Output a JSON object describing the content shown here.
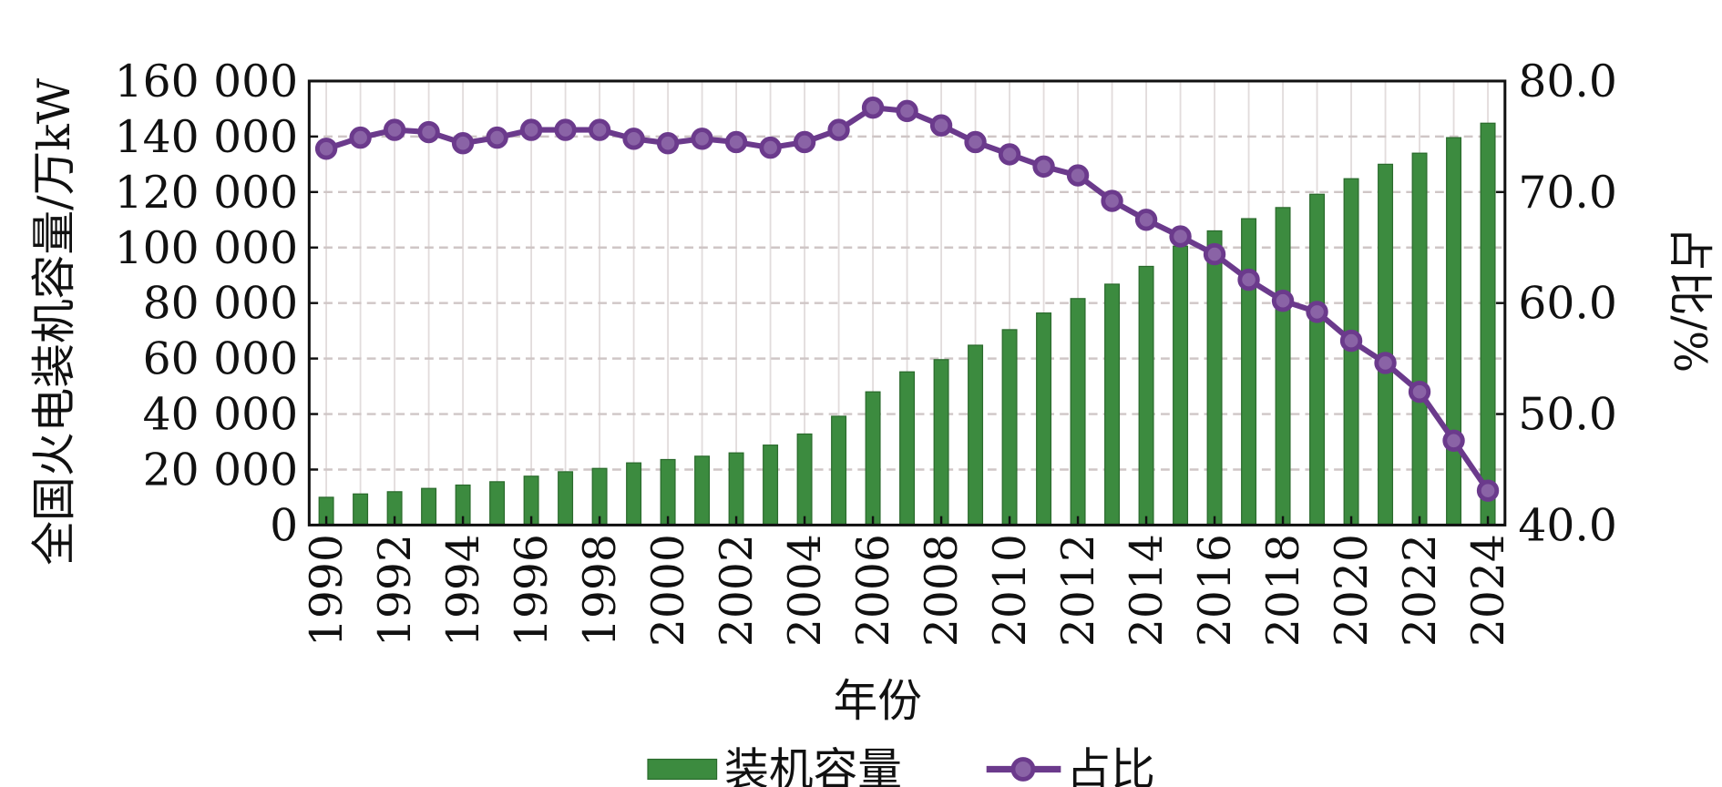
{
  "chart_data": {
    "type": "bar+line",
    "xlabel": "年份",
    "ylabel": "全国火电装机容量/万kW",
    "y2label": "占比/%",
    "ylim": [
      0,
      160000
    ],
    "y2lim": [
      40.0,
      80.0
    ],
    "yticks": [
      "0",
      "20 000",
      "40 000",
      "60 000",
      "80 000",
      "100 000",
      "120 000",
      "140 000",
      "160 000"
    ],
    "y2ticks": [
      "40.0",
      "50.0",
      "60.0",
      "70.0",
      "80.0"
    ],
    "xticks": [
      "1990",
      "1992",
      "1994",
      "1996",
      "1998",
      "2000",
      "2002",
      "2004",
      "2006",
      "2008",
      "2010",
      "2012",
      "2014",
      "2016",
      "2018",
      "2020",
      "2022",
      "2024"
    ],
    "grid": true,
    "legend_position": "bottom-center",
    "categories": [
      1990,
      1991,
      1992,
      1993,
      1994,
      1995,
      1996,
      1997,
      1998,
      1999,
      2000,
      2001,
      2002,
      2003,
      2004,
      2005,
      2006,
      2007,
      2008,
      2009,
      2010,
      2011,
      2012,
      2013,
      2014,
      2015,
      2016,
      2017,
      2018,
      2019,
      2020,
      2021,
      2022,
      2023,
      2024
    ],
    "series": [
      {
        "name": "装机容量",
        "type": "bar",
        "axis": "left",
        "color": "#3c8b3f",
        "values": [
          10000,
          11200,
          12000,
          13200,
          14400,
          15600,
          17600,
          19200,
          20400,
          22400,
          23600,
          24800,
          26000,
          28800,
          32800,
          39200,
          48000,
          55200,
          59600,
          64800,
          70400,
          76400,
          81600,
          86800,
          93200,
          100500,
          106000,
          110400,
          114400,
          119200,
          124800,
          130000,
          134000,
          139600,
          144800
        ]
      },
      {
        "name": "占比",
        "type": "line",
        "axis": "right",
        "color": "#6b3a8c",
        "values": [
          73.9,
          74.9,
          75.6,
          75.4,
          74.4,
          74.9,
          75.6,
          75.6,
          75.6,
          74.8,
          74.4,
          74.8,
          74.5,
          74.0,
          74.5,
          75.6,
          77.6,
          77.3,
          76.0,
          74.5,
          73.4,
          72.3,
          71.5,
          69.2,
          67.5,
          66.0,
          64.4,
          62.1,
          60.2,
          59.2,
          56.6,
          54.6,
          52.0,
          47.6,
          43.1
        ]
      }
    ]
  }
}
